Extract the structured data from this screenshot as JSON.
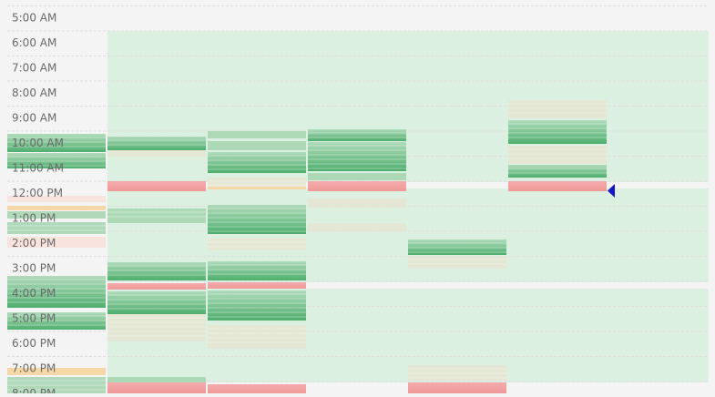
{
  "time_labels": [
    "5:00 AM",
    "6:00 AM",
    "7:00 AM",
    "8:00 AM",
    "9:00 AM",
    "10:00 AM",
    "11:00 AM",
    "12:00 PM",
    "1:00 PM",
    "2:00 PM",
    "3:00 PM",
    "4:00 PM",
    "5:00 PM",
    "6:00 PM",
    "7:00 PM",
    "8:00 PM"
  ]
}
